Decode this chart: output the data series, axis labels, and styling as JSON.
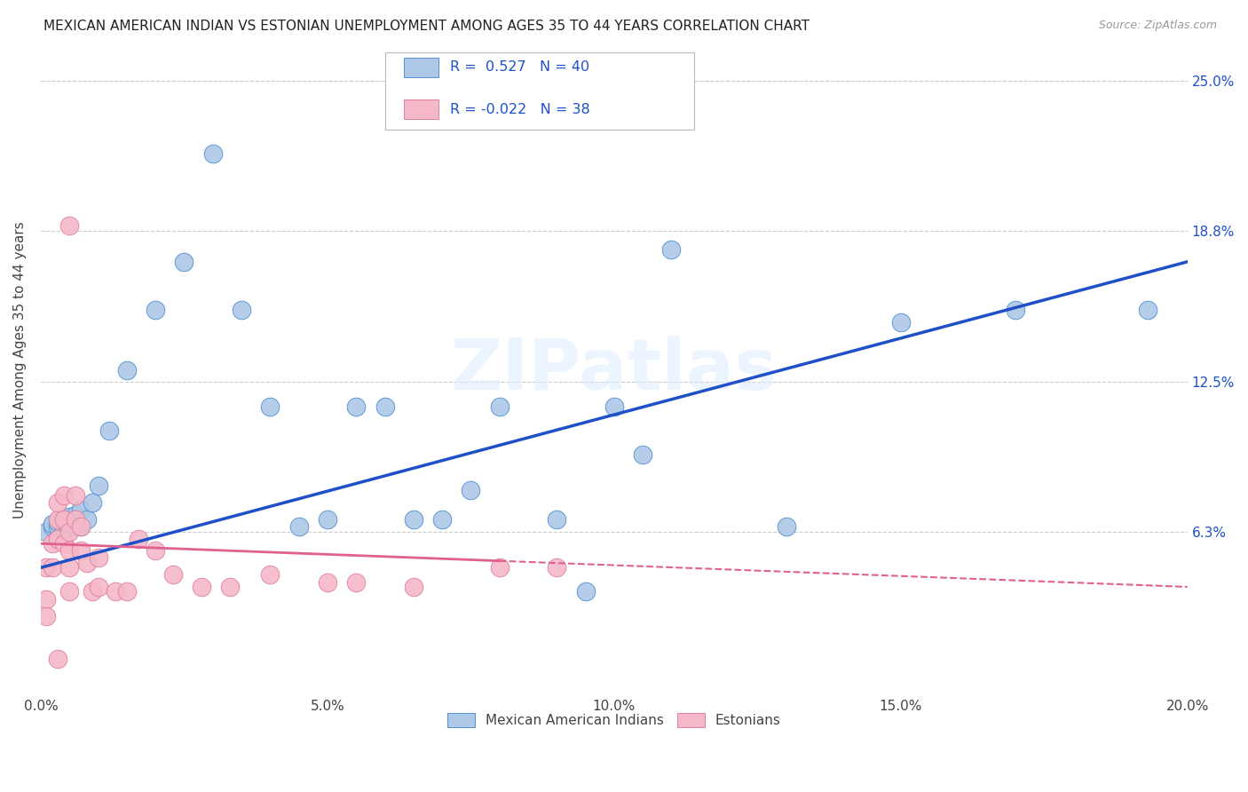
{
  "title": "MEXICAN AMERICAN INDIAN VS ESTONIAN UNEMPLOYMENT AMONG AGES 35 TO 44 YEARS CORRELATION CHART",
  "source": "Source: ZipAtlas.com",
  "ylabel": "Unemployment Among Ages 35 to 44 years",
  "xlim": [
    0.0,
    0.2
  ],
  "ylim": [
    -0.005,
    0.265
  ],
  "xtick_labels": [
    "0.0%",
    "",
    "5.0%",
    "",
    "10.0%",
    "",
    "15.0%",
    "",
    "20.0%"
  ],
  "xtick_vals": [
    0.0,
    0.025,
    0.05,
    0.075,
    0.1,
    0.125,
    0.15,
    0.175,
    0.2
  ],
  "ytick_labels": [
    "6.3%",
    "12.5%",
    "18.8%",
    "25.0%"
  ],
  "ytick_vals": [
    0.063,
    0.125,
    0.188,
    0.25
  ],
  "r_blue": "0.527",
  "n_blue": "40",
  "r_pink": "-0.022",
  "n_pink": "38",
  "blue_dot_color": "#aec8e8",
  "pink_dot_color": "#f5b8c8",
  "blue_edge_color": "#5090d0",
  "pink_edge_color": "#e080a0",
  "blue_line_color": "#2050c8",
  "pink_line_color": "#e06090",
  "watermark": "ZIPatlas",
  "legend_label_blue": "Mexican American Indians",
  "legend_label_pink": "Estonians",
  "blue_x": [
    0.001,
    0.002,
    0.002,
    0.003,
    0.003,
    0.004,
    0.004,
    0.005,
    0.005,
    0.006,
    0.006,
    0.007,
    0.007,
    0.008,
    0.009,
    0.01,
    0.012,
    0.015,
    0.02,
    0.025,
    0.03,
    0.035,
    0.04,
    0.045,
    0.05,
    0.055,
    0.06,
    0.065,
    0.07,
    0.075,
    0.08,
    0.09,
    0.095,
    0.1,
    0.105,
    0.11,
    0.13,
    0.15,
    0.17,
    0.193
  ],
  "blue_y": [
    0.063,
    0.065,
    0.066,
    0.065,
    0.067,
    0.064,
    0.068,
    0.065,
    0.069,
    0.065,
    0.07,
    0.065,
    0.072,
    0.068,
    0.075,
    0.082,
    0.105,
    0.13,
    0.155,
    0.175,
    0.22,
    0.155,
    0.115,
    0.065,
    0.068,
    0.115,
    0.115,
    0.068,
    0.068,
    0.08,
    0.115,
    0.068,
    0.038,
    0.115,
    0.095,
    0.18,
    0.065,
    0.15,
    0.155,
    0.155
  ],
  "pink_x": [
    0.001,
    0.001,
    0.001,
    0.002,
    0.002,
    0.003,
    0.003,
    0.003,
    0.004,
    0.004,
    0.004,
    0.005,
    0.005,
    0.005,
    0.005,
    0.006,
    0.006,
    0.007,
    0.007,
    0.008,
    0.009,
    0.01,
    0.01,
    0.013,
    0.015,
    0.017,
    0.02,
    0.023,
    0.028,
    0.033,
    0.04,
    0.05,
    0.055,
    0.065,
    0.08,
    0.09,
    0.005,
    0.003
  ],
  "pink_y": [
    0.048,
    0.035,
    0.028,
    0.058,
    0.048,
    0.068,
    0.075,
    0.06,
    0.058,
    0.068,
    0.078,
    0.063,
    0.055,
    0.048,
    0.038,
    0.068,
    0.078,
    0.065,
    0.055,
    0.05,
    0.038,
    0.052,
    0.04,
    0.038,
    0.038,
    0.06,
    0.055,
    0.045,
    0.04,
    0.04,
    0.045,
    0.042,
    0.042,
    0.04,
    0.048,
    0.048,
    0.19,
    0.01
  ],
  "blue_trend_x0": 0.0,
  "blue_trend_y0": 0.048,
  "blue_trend_x1": 0.2,
  "blue_trend_y1": 0.175,
  "pink_trend_x0": 0.0,
  "pink_trend_y0": 0.058,
  "pink_trend_x1": 0.2,
  "pink_trend_y1": 0.04
}
